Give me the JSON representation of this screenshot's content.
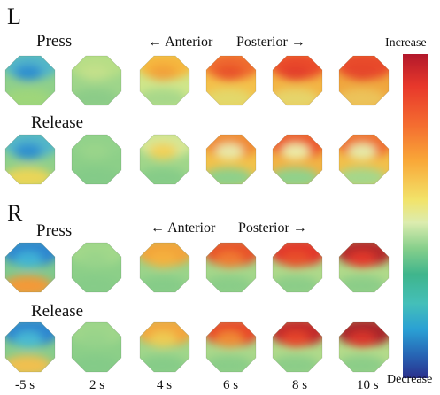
{
  "panels": [
    {
      "letter": "L",
      "press_label": "Press",
      "release_label": "Release",
      "anterior_label": "← Anterior",
      "posterior_label": "Posterior →"
    },
    {
      "letter": "R",
      "press_label": "Press",
      "release_label": "Release",
      "anterior_label": "← Anterior",
      "posterior_label": "Posterior →"
    }
  ],
  "time_labels": [
    "-5 s",
    "2 s",
    "4 s",
    "6 s",
    "8 s",
    "10 s"
  ],
  "scale": {
    "top_label": "Increase",
    "bottom_label": "Decrease",
    "colors": [
      "#b2182b",
      "#e8382b",
      "#f46d30",
      "#f9a838",
      "#f2e36a",
      "#dcecaf",
      "#86cf8b",
      "#3fb58c",
      "#44bfb9",
      "#2aa0d4",
      "#2764b4",
      "#2a2f8c"
    ]
  },
  "maps": {
    "L_press": [
      {
        "base": "#8fd08a",
        "top": "#52b6c8",
        "topMid": "#2e8fd0",
        "bottom": "#9fd67a"
      },
      {
        "base": "#9ed58a",
        "top": "#b7de86",
        "topMid": "#c3e08a",
        "bottom": "#8ccc88"
      },
      {
        "base": "#cfe68a",
        "top": "#f6b73c",
        "topMid": "#f2a23a",
        "bottom": "#a8d88a"
      },
      {
        "base": "#f4c04a",
        "top": "#ef6a2e",
        "topMid": "#e8532c",
        "bottom": "#e3d86a"
      },
      {
        "base": "#f3b444",
        "top": "#ea4c2c",
        "topMid": "#e3402b",
        "bottom": "#e6d46a"
      },
      {
        "base": "#f0a63e",
        "top": "#e84a2c",
        "topMid": "#e5472c",
        "bottom": "#ecc35a"
      }
    ],
    "L_release": [
      {
        "base": "#8fd08a",
        "top": "#52b6c8",
        "topMid": "#2e8fd0",
        "bottom": "#e9d558"
      },
      {
        "base": "#8ccf88",
        "top": "#92d28a",
        "topMid": "#9ad48a",
        "bottom": "#84cb88"
      },
      {
        "base": "#9fd68a",
        "top": "#d5e694",
        "topMid": "#f2d158",
        "bottom": "#86cc88"
      },
      {
        "base": "#f2c24a",
        "top": "#f08a35",
        "topMid": "#e9e7a8",
        "bottom": "#8fd08a"
      },
      {
        "base": "#f2b344",
        "top": "#ec5a2e",
        "topMid": "#eceaa8",
        "bottom": "#92d18a"
      },
      {
        "base": "#f2c04a",
        "top": "#ef7030",
        "topMid": "#e6e8a8",
        "bottom": "#a6d78a"
      }
    ],
    "R_press": [
      {
        "base": "#7fc98d",
        "top": "#2f86cf",
        "topMid": "#3fb2d6",
        "bottom": "#f39a38"
      },
      {
        "base": "#8ccf88",
        "top": "#a2d88a",
        "topMid": "#9ad48a",
        "bottom": "#86cc88"
      },
      {
        "base": "#9ad48a",
        "top": "#f2a43a",
        "topMid": "#f5b13e",
        "bottom": "#86cc88"
      },
      {
        "base": "#a4d78a",
        "top": "#e8522c",
        "topMid": "#f07a32",
        "bottom": "#8acd88"
      },
      {
        "base": "#aed98a",
        "top": "#e2382a",
        "topMid": "#e8502c",
        "bottom": "#8ccd88"
      },
      {
        "base": "#b0da8a",
        "top": "#b42a2c",
        "topMid": "#e2392a",
        "bottom": "#8ccd88"
      }
    ],
    "R_release": [
      {
        "base": "#86cc8c",
        "top": "#2f86cf",
        "topMid": "#46b8d4",
        "bottom": "#f0c050"
      },
      {
        "base": "#8ccf88",
        "top": "#9fd68a",
        "topMid": "#97d38a",
        "bottom": "#84cb88"
      },
      {
        "base": "#a0d68a",
        "top": "#f3a63c",
        "topMid": "#eecb52",
        "bottom": "#86cc88"
      },
      {
        "base": "#aad88a",
        "top": "#e8482b",
        "topMid": "#f08a35",
        "bottom": "#8acd88"
      },
      {
        "base": "#b0da8a",
        "top": "#c22b2b",
        "topMid": "#e6452c",
        "bottom": "#8ccd88"
      },
      {
        "base": "#b4db8a",
        "top": "#a8262b",
        "topMid": "#d9342a",
        "bottom": "#8ccd88"
      }
    ]
  }
}
